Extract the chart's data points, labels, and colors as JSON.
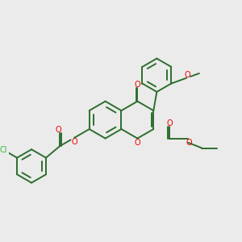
{
  "bg": "#ebebeb",
  "bc": "#2d6e2d",
  "oc": "#ee0000",
  "cc": "#33bb33",
  "lw": 1.4,
  "fs": 7.0,
  "figsize": [
    3.0,
    3.0
  ],
  "dpi": 100,
  "xlim": [
    0,
    10
  ],
  "ylim": [
    0,
    10
  ]
}
